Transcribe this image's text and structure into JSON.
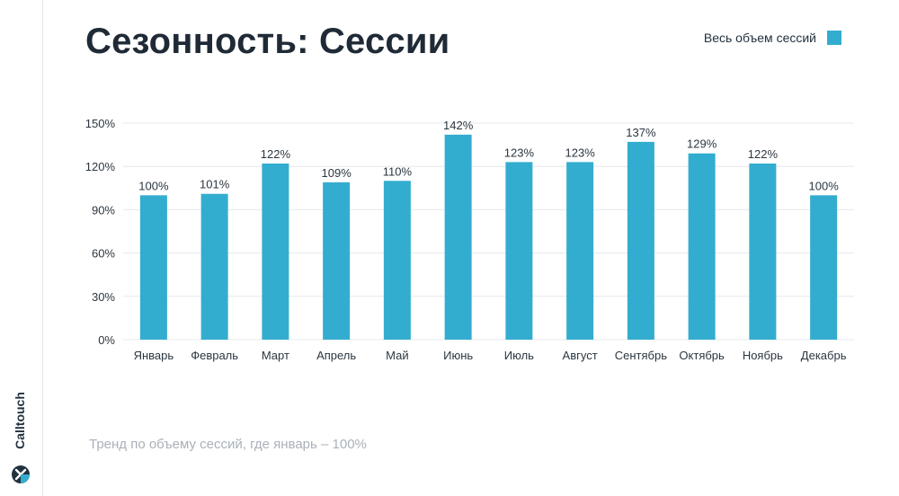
{
  "brand": {
    "name": "Calltouch"
  },
  "title": "Сезонность: Сессии",
  "legend": {
    "label": "Весь объем сессий"
  },
  "caption": "Тренд по объему сессий, где январь – 100%",
  "colors": {
    "bar": "#33adcf",
    "grid": "#e6e8eb",
    "text": "#2b3640"
  },
  "chart_data": {
    "type": "bar",
    "categories": [
      "Январь",
      "Февраль",
      "Март",
      "Апрель",
      "Май",
      "Июнь",
      "Июль",
      "Август",
      "Сентябрь",
      "Октябрь",
      "Ноябрь",
      "Декабрь"
    ],
    "values": [
      100,
      101,
      122,
      109,
      110,
      142,
      123,
      123,
      137,
      129,
      122,
      100
    ],
    "value_labels": [
      "100%",
      "101%",
      "122%",
      "109%",
      "110%",
      "142%",
      "123%",
      "123%",
      "137%",
      "129%",
      "122%",
      "100%"
    ],
    "series": [
      {
        "name": "Весь объем сессий",
        "values": [
          100,
          101,
          122,
          109,
          110,
          142,
          123,
          123,
          137,
          129,
          122,
          100
        ]
      }
    ],
    "yticks": [
      "0%",
      "30%",
      "60%",
      "90%",
      "120%",
      "150%"
    ],
    "ytick_values": [
      0,
      30,
      60,
      90,
      120,
      150
    ],
    "ylim": [
      0,
      150
    ],
    "grid": true,
    "legend_position": "top-right"
  }
}
